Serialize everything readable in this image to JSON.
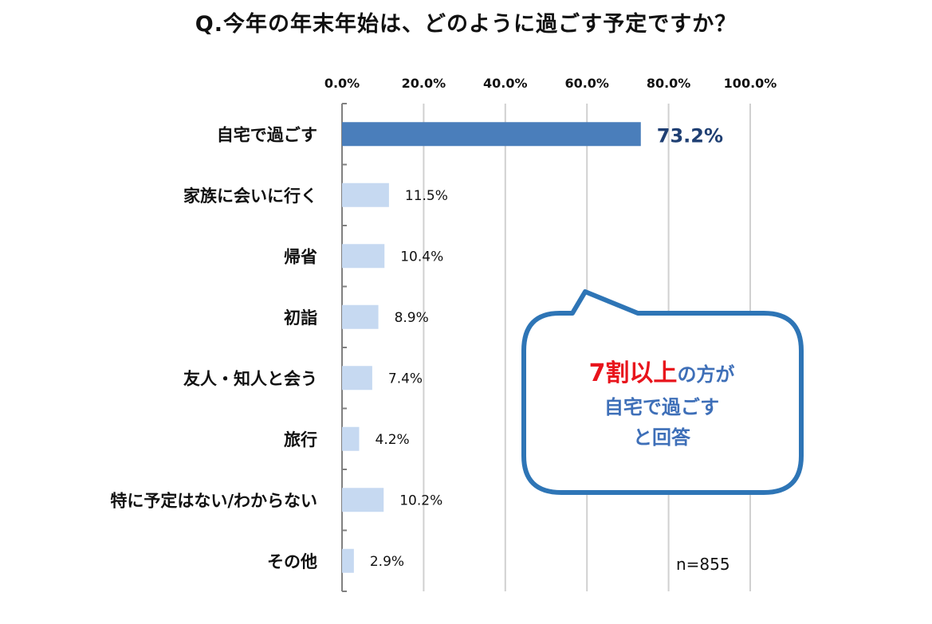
{
  "title": "Q.今年の年末年始は、どのように過ごす予定ですか？",
  "note": "n=855",
  "callout": {
    "highlight": "7割以上",
    "rest": "の方が",
    "line2": "自宅で過ごす",
    "line3": "と回答"
  },
  "colors": {
    "primary_bar": "#4a7ebb",
    "secondary_bar": "#c6d9f1",
    "primary_label": "#1f3f73",
    "callout_border": "#2e75b6",
    "callout_highlight": "#e8141c",
    "callout_text": "#3e6fb8"
  },
  "chart_data": {
    "type": "bar",
    "orientation": "horizontal",
    "categories": [
      "自宅で過ごす",
      "家族に会いに行く",
      "帰省",
      "初詣",
      "友人・知人と会う",
      "旅行",
      "特に予定はない/わからない",
      "その他"
    ],
    "values": [
      73.2,
      11.5,
      10.4,
      8.9,
      7.4,
      4.2,
      10.2,
      2.9
    ],
    "value_labels": [
      "73.2%",
      "11.5%",
      "10.4%",
      "8.9%",
      "7.4%",
      "4.2%",
      "10.2%",
      "2.9%"
    ],
    "tick_labels": [
      "0.0%",
      "20.0%",
      "40.0%",
      "60.0%",
      "80.0%",
      "100.0%"
    ],
    "xlim": [
      0,
      100
    ],
    "grid": true,
    "legend": false
  }
}
